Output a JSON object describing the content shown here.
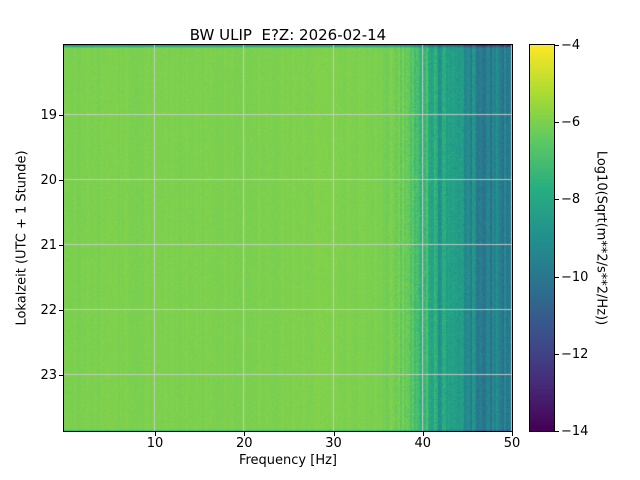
{
  "chart_data": {
    "type": "heatmap",
    "title": "BW ULIP  E?Z: 2026-02-14",
    "xlabel": "Frequency [Hz]",
    "ylabel": "Lokalzeit (UTC + 1 Stunde)",
    "colormap": "viridis",
    "grid": true,
    "x_range": [
      -0.2,
      50.0
    ],
    "x_ticks": [
      10,
      20,
      30,
      40,
      50
    ],
    "y_range": [
      17.92,
      23.86
    ],
    "y_ticks": [
      19,
      20,
      21,
      22,
      23
    ],
    "y_direction": "down",
    "colorbar": {
      "label": "Log10(Sqrt(m**2/s**2/Hz))",
      "range": [
        -14,
        -4
      ],
      "ticks": [
        -4,
        -6,
        -8,
        -10,
        -12,
        -14
      ]
    },
    "profile_freq_value": [
      [
        0,
        -6.0
      ],
      [
        30,
        -5.95
      ],
      [
        35,
        -6.0
      ],
      [
        37,
        -6.2
      ],
      [
        39,
        -6.8
      ],
      [
        40,
        -7.4
      ],
      [
        41,
        -7.9
      ],
      [
        42,
        -8.3
      ],
      [
        43,
        -8.7
      ],
      [
        44,
        -9.0
      ],
      [
        46,
        -9.4
      ],
      [
        48,
        -9.6
      ],
      [
        50,
        -9.8
      ]
    ]
  }
}
